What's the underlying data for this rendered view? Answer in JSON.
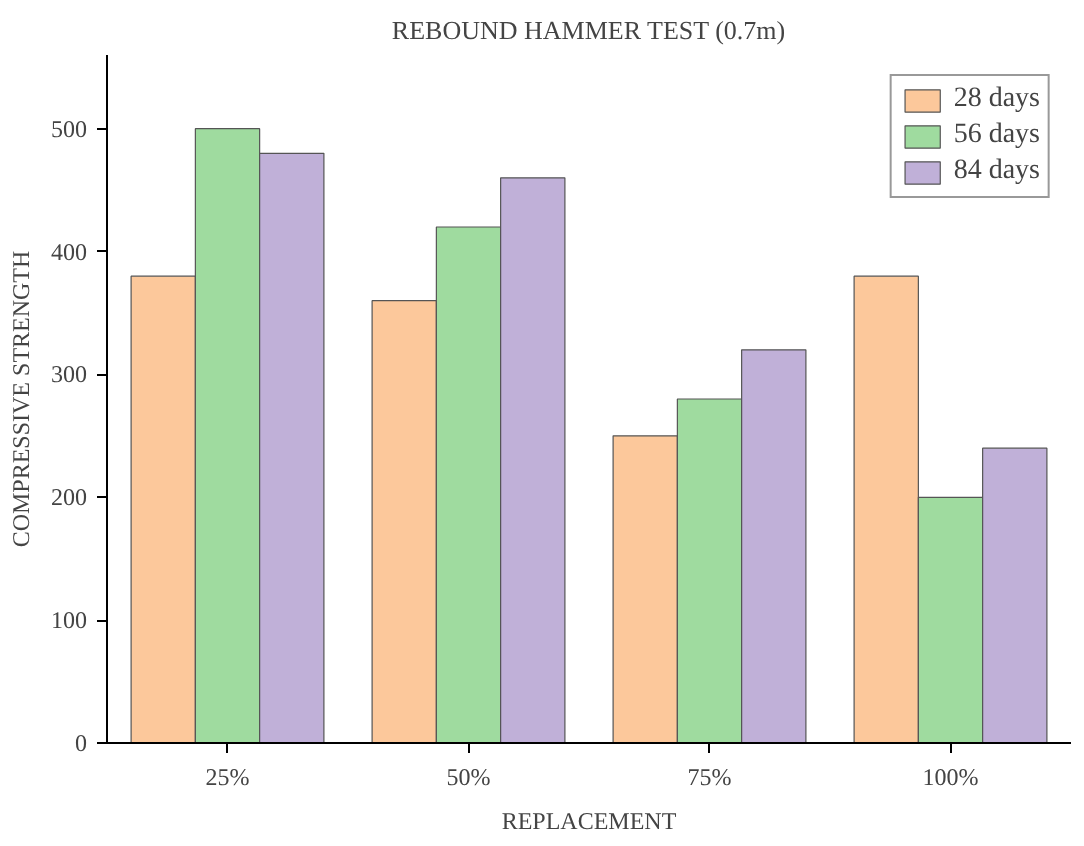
{
  "chart_data": {
    "type": "bar",
    "title": "REBOUND HAMMER TEST (0.7m)",
    "xlabel": "REPLACEMENT",
    "ylabel": "COMPRESSIVE STRENGTH",
    "categories": [
      "25%",
      "50%",
      "75%",
      "100%"
    ],
    "series": [
      {
        "name": "28 days",
        "color": "#fcc89b",
        "values": [
          380,
          360,
          250,
          380
        ]
      },
      {
        "name": "56 days",
        "color": "#9fdb9f",
        "values": [
          500,
          420,
          280,
          200
        ]
      },
      {
        "name": "84 days",
        "color": "#c0b0d8",
        "values": [
          480,
          460,
          320,
          240
        ]
      }
    ],
    "ylim": [
      0,
      560
    ],
    "yticks": [
      0,
      100,
      200,
      300,
      400,
      500
    ],
    "grid": false,
    "legend": "top right"
  }
}
